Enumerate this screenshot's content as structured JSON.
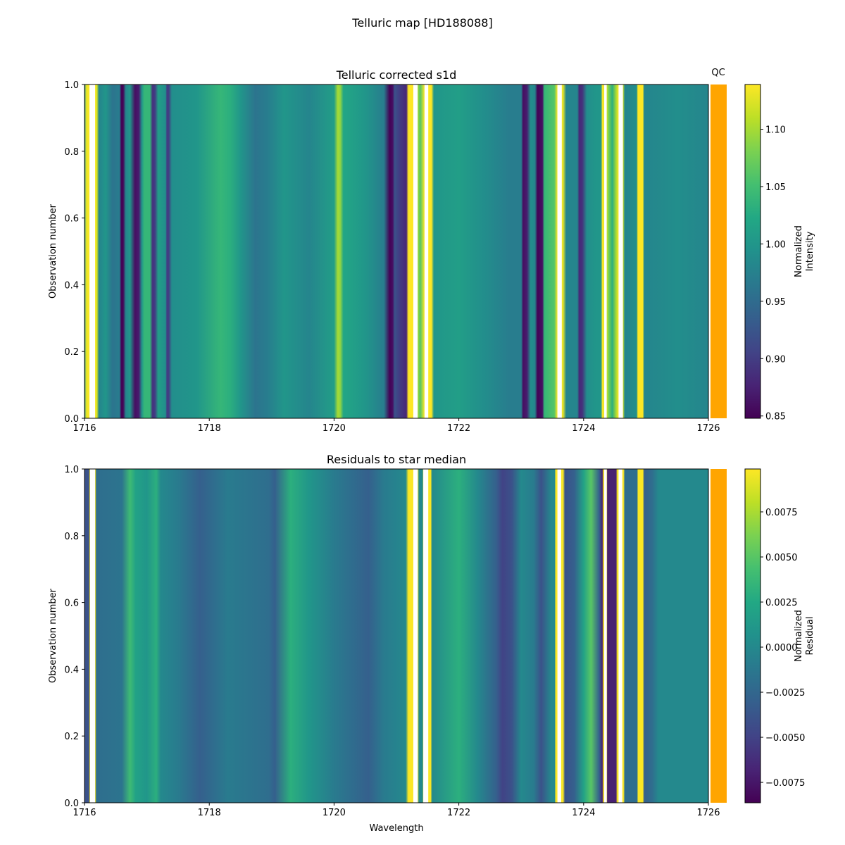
{
  "title": "Telluric map [HD188088]",
  "qc_label": "QC",
  "qc_color": "#FFA500",
  "chart_data": [
    {
      "type": "heatmap",
      "title": "Telluric corrected s1d",
      "xlabel": "",
      "ylabel": "Observation number",
      "xlim": [
        1716,
        1726
      ],
      "ylim": [
        0,
        1
      ],
      "xticks": [
        "1716",
        "1718",
        "1720",
        "1722",
        "1724",
        "1726"
      ],
      "yticks": [
        "0.0",
        "0.2",
        "0.4",
        "0.6",
        "0.8",
        "1.0"
      ],
      "colorbar_label": [
        "Normalized",
        "Intensity"
      ],
      "clim": [
        0.848,
        1.139
      ],
      "cticks": [
        "0.85",
        "0.90",
        "0.95",
        "1.00",
        "1.05",
        "1.10"
      ],
      "masked_ranges": [
        [
          1716.08,
          1716.17
        ],
        [
          1721.27,
          1721.34
        ],
        [
          1721.45,
          1721.51
        ],
        [
          1723.58,
          1723.65
        ],
        [
          1724.33,
          1724.37
        ],
        [
          1724.56,
          1724.63
        ]
      ],
      "profile": [
        [
          1716.0,
          1.0
        ],
        [
          1716.03,
          1.13
        ],
        [
          1716.08,
          1.14
        ],
        [
          1716.17,
          1.14
        ],
        [
          1716.2,
          1.12
        ],
        [
          1716.23,
          0.98
        ],
        [
          1716.34,
          1.0
        ],
        [
          1716.45,
          0.96
        ],
        [
          1716.56,
          0.97
        ],
        [
          1716.59,
          0.85
        ],
        [
          1716.62,
          0.85
        ],
        [
          1716.66,
          0.98
        ],
        [
          1716.73,
          1.0
        ],
        [
          1716.81,
          0.86
        ],
        [
          1716.87,
          0.87
        ],
        [
          1716.92,
          1.0
        ],
        [
          1716.96,
          1.04
        ],
        [
          1717.05,
          1.04
        ],
        [
          1717.09,
          0.89
        ],
        [
          1717.13,
          0.9
        ],
        [
          1717.18,
          1.01
        ],
        [
          1717.3,
          0.99
        ],
        [
          1717.32,
          0.9
        ],
        [
          1717.35,
          0.9
        ],
        [
          1717.4,
          0.99
        ],
        [
          1717.8,
          1.0
        ],
        [
          1718.18,
          1.04
        ],
        [
          1718.34,
          1.03
        ],
        [
          1718.5,
          1.0
        ],
        [
          1718.74,
          0.96
        ],
        [
          1718.93,
          0.97
        ],
        [
          1719.2,
          1.0
        ],
        [
          1719.6,
          0.98
        ],
        [
          1720.0,
          1.01
        ],
        [
          1720.06,
          1.1
        ],
        [
          1720.1,
          1.09
        ],
        [
          1720.15,
          1.02
        ],
        [
          1720.5,
          1.0
        ],
        [
          1720.8,
          0.97
        ],
        [
          1720.89,
          0.85
        ],
        [
          1720.94,
          0.86
        ],
        [
          1720.97,
          0.92
        ],
        [
          1721.05,
          0.9
        ],
        [
          1721.16,
          0.88
        ],
        [
          1721.19,
          1.14
        ],
        [
          1721.27,
          1.14
        ],
        [
          1721.34,
          1.1
        ],
        [
          1721.38,
          1.06
        ],
        [
          1721.45,
          1.14
        ],
        [
          1721.56,
          1.14
        ],
        [
          1721.6,
          1.0
        ],
        [
          1722.0,
          1.01
        ],
        [
          1722.4,
          0.99
        ],
        [
          1722.8,
          0.97
        ],
        [
          1723.0,
          0.97
        ],
        [
          1723.03,
          0.86
        ],
        [
          1723.09,
          0.87
        ],
        [
          1723.15,
          0.99
        ],
        [
          1723.22,
          0.98
        ],
        [
          1723.26,
          0.85
        ],
        [
          1723.34,
          0.86
        ],
        [
          1723.37,
          1.04
        ],
        [
          1723.53,
          1.06
        ],
        [
          1723.58,
          1.14
        ],
        [
          1723.67,
          1.13
        ],
        [
          1723.72,
          0.98
        ],
        [
          1723.9,
          0.98
        ],
        [
          1723.93,
          0.88
        ],
        [
          1723.98,
          0.89
        ],
        [
          1724.05,
          0.99
        ],
        [
          1724.2,
          1.0
        ],
        [
          1724.28,
          1.0
        ],
        [
          1724.3,
          1.14
        ],
        [
          1724.37,
          1.12
        ],
        [
          1724.4,
          1.08
        ],
        [
          1724.46,
          1.03
        ],
        [
          1724.52,
          1.1
        ],
        [
          1724.56,
          1.14
        ],
        [
          1724.63,
          1.12
        ],
        [
          1724.66,
          0.98
        ],
        [
          1724.85,
          0.99
        ],
        [
          1724.87,
          1.14
        ],
        [
          1724.95,
          1.14
        ],
        [
          1724.97,
          0.98
        ],
        [
          1725.5,
          0.99
        ],
        [
          1726.0,
          0.98
        ]
      ]
    },
    {
      "type": "heatmap",
      "title": "Residuals to star median",
      "xlabel": "Wavelength",
      "ylabel": "Observation number",
      "xlim": [
        1716,
        1726
      ],
      "ylim": [
        0,
        1
      ],
      "xticks": [
        "1716",
        "1718",
        "1720",
        "1722",
        "1724",
        "1726"
      ],
      "yticks": [
        "0.0",
        "0.2",
        "0.4",
        "0.6",
        "0.8",
        "1.0"
      ],
      "colorbar_label": [
        "Normalized",
        "Residual"
      ],
      "clim": [
        -0.00863,
        0.00988
      ],
      "cticks": [
        "−0.0075",
        "−0.0050",
        "−0.0025",
        "0.0000",
        "0.0025",
        "0.0050",
        "0.0075"
      ],
      "masked_ranges": [
        [
          1716.09,
          1716.17
        ],
        [
          1721.27,
          1721.34
        ],
        [
          1721.43,
          1721.51
        ],
        [
          1723.58,
          1723.64
        ],
        [
          1724.33,
          1724.37
        ],
        [
          1724.56,
          1724.62
        ]
      ],
      "profile": [
        [
          1716.0,
          -0.004
        ],
        [
          1716.07,
          -0.004
        ],
        [
          1716.09,
          0.0098
        ],
        [
          1716.17,
          0.0098
        ],
        [
          1716.19,
          -0.002
        ],
        [
          1716.6,
          -0.0015
        ],
        [
          1716.73,
          0.004
        ],
        [
          1716.82,
          0.002
        ],
        [
          1717.0,
          0.001
        ],
        [
          1717.15,
          0.003
        ],
        [
          1717.22,
          0.0
        ],
        [
          1717.5,
          -0.001
        ],
        [
          1717.85,
          -0.003
        ],
        [
          1718.3,
          -0.001
        ],
        [
          1718.95,
          -0.002
        ],
        [
          1719.05,
          -0.003
        ],
        [
          1719.3,
          0.003
        ],
        [
          1719.6,
          0.001
        ],
        [
          1720.0,
          -0.001
        ],
        [
          1720.55,
          -0.003
        ],
        [
          1720.8,
          -0.001
        ],
        [
          1721.15,
          0.0
        ],
        [
          1721.19,
          0.0098
        ],
        [
          1721.34,
          0.0098
        ],
        [
          1721.36,
          0.0
        ],
        [
          1721.42,
          0.0
        ],
        [
          1721.43,
          0.0098
        ],
        [
          1721.55,
          0.0098
        ],
        [
          1721.57,
          0.0
        ],
        [
          1722.0,
          0.003
        ],
        [
          1722.3,
          0.0
        ],
        [
          1722.6,
          -0.003
        ],
        [
          1722.7,
          -0.005
        ],
        [
          1722.85,
          -0.004
        ],
        [
          1723.0,
          0.0
        ],
        [
          1723.2,
          -0.001
        ],
        [
          1723.32,
          -0.004
        ],
        [
          1723.48,
          0.0
        ],
        [
          1723.54,
          0.0
        ],
        [
          1723.55,
          0.0098
        ],
        [
          1723.67,
          0.0098
        ],
        [
          1723.7,
          -0.004
        ],
        [
          1723.85,
          -0.003
        ],
        [
          1724.0,
          0.002
        ],
        [
          1724.12,
          0.005
        ],
        [
          1724.25,
          -0.003
        ],
        [
          1724.3,
          -0.007
        ],
        [
          1724.32,
          0.0098
        ],
        [
          1724.37,
          0.0098
        ],
        [
          1724.38,
          -0.007
        ],
        [
          1724.52,
          -0.007
        ],
        [
          1724.54,
          0.0098
        ],
        [
          1724.64,
          0.0098
        ],
        [
          1724.66,
          -0.002
        ],
        [
          1724.86,
          -0.002
        ],
        [
          1724.87,
          0.0098
        ],
        [
          1724.95,
          0.0098
        ],
        [
          1724.97,
          -0.003
        ],
        [
          1725.1,
          -0.002
        ],
        [
          1725.2,
          0.0
        ],
        [
          1726.0,
          0.0
        ]
      ]
    }
  ]
}
